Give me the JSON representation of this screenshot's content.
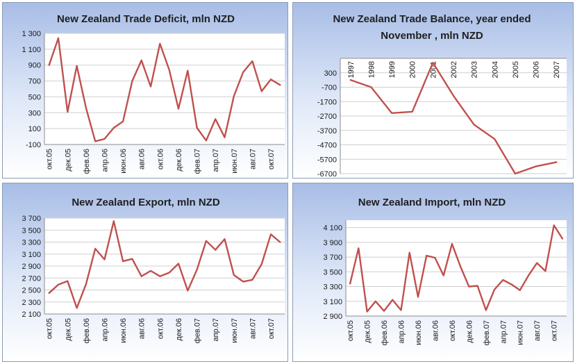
{
  "chart_data": [
    {
      "id": "deficit",
      "type": "line",
      "title": [
        "New Zealand Trade Deficit, mln NZD"
      ],
      "ylim": [
        -100,
        1300
      ],
      "yticks": [
        -100,
        100,
        300,
        500,
        700,
        900,
        1100,
        1300
      ],
      "ytick_labels": [
        "-100",
        "100",
        "300",
        "500",
        "700",
        "900",
        "1 100",
        "1 300"
      ],
      "xaxis_at": "bottom",
      "x_labels_shown": [
        "окт.05",
        "дек.05",
        "фев.06",
        "апр.06",
        "июн.06",
        "авг.06",
        "окт.06",
        "дек.06",
        "фев.07",
        "апр.07",
        "июн.07",
        "авг.07",
        "окт.07"
      ],
      "x": [
        "окт.05",
        "ноя.05",
        "дек.05",
        "янв.06",
        "фев.06",
        "мар.06",
        "апр.06",
        "май.06",
        "июн.06",
        "июл.06",
        "авг.06",
        "сен.06",
        "окт.06",
        "ноя.06",
        "дек.06",
        "янв.07",
        "фев.07",
        "мар.07",
        "апр.07",
        "май.07",
        "июн.07",
        "июл.07",
        "авг.07",
        "сен.07",
        "окт.07",
        "ноя.07"
      ],
      "series": [
        {
          "values": [
            900,
            1240,
            310,
            890,
            360,
            -60,
            -30,
            110,
            190,
            700,
            960,
            630,
            1170,
            840,
            350,
            830,
            110,
            -50,
            220,
            -10,
            510,
            810,
            950,
            570,
            720,
            650
          ]
        }
      ]
    },
    {
      "id": "balance",
      "type": "line",
      "title": [
        "New Zealand Trade Balance, year ended",
        "November , mln NZD"
      ],
      "ylim": [
        -6700,
        1300
      ],
      "yticks": [
        -6700,
        -5700,
        -4700,
        -3700,
        -2700,
        -1700,
        -700,
        300
      ],
      "ytick_labels": [
        "-6700",
        "-5700",
        "-4700",
        "-3700",
        "-2700",
        "-1700",
        "-700",
        "300"
      ],
      "xaxis_at": "top",
      "x_labels_shown": [
        "1997",
        "1998",
        "1999",
        "2000",
        "2001",
        "2002",
        "2003",
        "2004",
        "2005",
        "2006",
        "2007"
      ],
      "x": [
        "1997",
        "1998",
        "1999",
        "2000",
        "2001",
        "2002",
        "2003",
        "2004",
        "2005",
        "2006",
        "2007"
      ],
      "series": [
        {
          "values": [
            -200,
            -700,
            -2500,
            -2400,
            1000,
            -1300,
            -3300,
            -4300,
            -6700,
            -6200,
            -5900
          ]
        }
      ]
    },
    {
      "id": "export",
      "type": "line",
      "title": [
        "New Zealand Export, mln NZD"
      ],
      "ylim": [
        2100,
        3700
      ],
      "yticks": [
        2100,
        2300,
        2500,
        2700,
        2900,
        3100,
        3300,
        3500,
        3700
      ],
      "ytick_labels": [
        "2 100",
        "2 300",
        "2 500",
        "2 700",
        "2 900",
        "3 100",
        "3 300",
        "3 500",
        "3 700"
      ],
      "xaxis_at": "bottom",
      "x_labels_shown": [
        "окт.05",
        "дек.05",
        "фев.06",
        "апр.06",
        "июн.06",
        "авг.06",
        "окт.06",
        "дек.06",
        "фев.07",
        "апр.07",
        "июн.07",
        "авг.07",
        "окт.07"
      ],
      "x": [
        "окт.05",
        "ноя.05",
        "дек.05",
        "янв.06",
        "фев.06",
        "мар.06",
        "апр.06",
        "май.06",
        "июн.06",
        "июл.06",
        "авг.06",
        "сен.06",
        "окт.06",
        "ноя.06",
        "дек.06",
        "янв.07",
        "фев.07",
        "мар.07",
        "апр.07",
        "май.07",
        "июн.07",
        "июл.07",
        "авг.07",
        "сен.07",
        "окт.07",
        "ноя.07"
      ],
      "series": [
        {
          "values": [
            2450,
            2590,
            2650,
            2200,
            2600,
            3190,
            3010,
            3650,
            2980,
            3020,
            2730,
            2820,
            2730,
            2790,
            2940,
            2490,
            2840,
            3320,
            3170,
            3350,
            2750,
            2640,
            2670,
            2930,
            3430,
            3300
          ]
        }
      ]
    },
    {
      "id": "import",
      "type": "line",
      "title": [
        "New Zealand Import, mln NZD"
      ],
      "ylim": [
        2900,
        4200
      ],
      "yticks": [
        2900,
        3100,
        3300,
        3500,
        3700,
        3900,
        4100
      ],
      "ytick_labels": [
        "2 900",
        "3 100",
        "3 300",
        "3 500",
        "3 700",
        "3 900",
        "4 100"
      ],
      "xaxis_at": "bottom",
      "x_labels_shown": [
        "окт.05",
        "дек.05",
        "фев.06",
        "апр.06",
        "июн.06",
        "авг.06",
        "окт.06",
        "дек.06",
        "фев.07",
        "апр.07",
        "июн.07",
        "авг.07",
        "окт.07"
      ],
      "x": [
        "окт.05",
        "ноя.05",
        "дек.05",
        "янв.06",
        "фев.06",
        "мар.06",
        "апр.06",
        "май.06",
        "июн.06",
        "июл.06",
        "авг.06",
        "сен.06",
        "окт.06",
        "ноя.06",
        "дек.06",
        "янв.07",
        "фев.07",
        "мар.07",
        "апр.07",
        "май.07",
        "июн.07",
        "июл.07",
        "авг.07",
        "сен.07",
        "окт.07",
        "ноя.07"
      ],
      "series": [
        {
          "values": [
            3340,
            3820,
            2960,
            3100,
            2970,
            3120,
            2980,
            3760,
            3160,
            3720,
            3690,
            3450,
            3880,
            3570,
            3300,
            3310,
            2980,
            3260,
            3390,
            3330,
            3250,
            3450,
            3620,
            3510,
            4130,
            3950
          ]
        }
      ]
    }
  ],
  "style": {
    "line_color": "#c0504d",
    "grid_color": "#cfcfcf",
    "panel_gradient_top": "#a8bde6"
  }
}
